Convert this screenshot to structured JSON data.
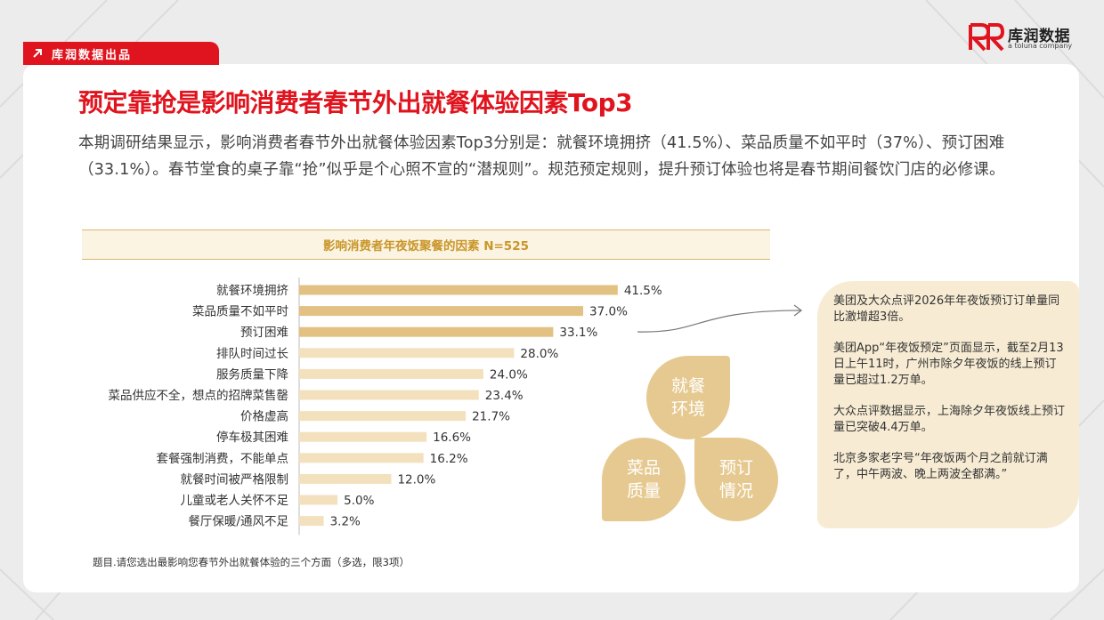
{
  "tag": {
    "label": "库润数据出品"
  },
  "logo": {
    "name": "库润数据",
    "sub": "a toluna company",
    "color": "#e0141e"
  },
  "title": "预定靠抢是影响消费者春节外出就餐体验因素Top3",
  "intro": "本期调研结果显示，影响消费者春节外出就餐体验因素Top3分别是：就餐环境拥挤（41.5%）、菜品质量不如平时（37%）、预订困难（33.1%）。春节堂食的桌子靠“抢”似乎是个心照不宣的“潜规则”。规范预定规则，提升预订体验也将是春节期间餐饮门店的必修课。",
  "chart_data": {
    "type": "bar",
    "orientation": "horizontal",
    "title": "影响消费者年夜饭聚餐的因素  N=525",
    "categories": [
      "就餐环境拥挤",
      "菜品质量不如平时",
      "预订困难",
      "排队时间过长",
      "服务质量下降",
      "菜品供应不全，想点的招牌菜售罄",
      "价格虚高",
      "停车极其困难",
      "套餐强制消费，不能单点",
      "就餐时间被严格限制",
      "儿童或老人关怀不足",
      "餐厅保暖/通风不足"
    ],
    "values": [
      41.5,
      37.0,
      33.1,
      28.0,
      24.0,
      23.4,
      21.7,
      16.6,
      16.2,
      12.0,
      5.0,
      3.2
    ],
    "labels": [
      "41.5%",
      "37.0%",
      "33.1%",
      "28.0%",
      "24.0%",
      "23.4%",
      "21.7%",
      "16.6%",
      "16.2%",
      "12.0%",
      "5.0%",
      "3.2%"
    ],
    "xlim": [
      0,
      45
    ],
    "top3_color": "#e2c182",
    "other_color": "#f3e1bd"
  },
  "footnote": "题目.请您选出最影响您春节外出就餐体验的三个方面（多选，限3项）",
  "drops": [
    "就餐\n环境",
    "菜品\n质量",
    "预订\n情况"
  ],
  "news": [
    "美团及大众点评2026年年夜饭预订订单量同比激增超3倍。",
    "美团App“年夜饭预定”页面显示，截至2月13日上午11时，广州市除夕年夜饭的线上预订量已超过1.2万单。",
    "大众点评数据显示，上海除夕年夜饭线上预订量已突破4.4万单。",
    "北京多家老字号“年夜饭两个月之前就订满了，中午两波、晚上两波全都满。”"
  ]
}
